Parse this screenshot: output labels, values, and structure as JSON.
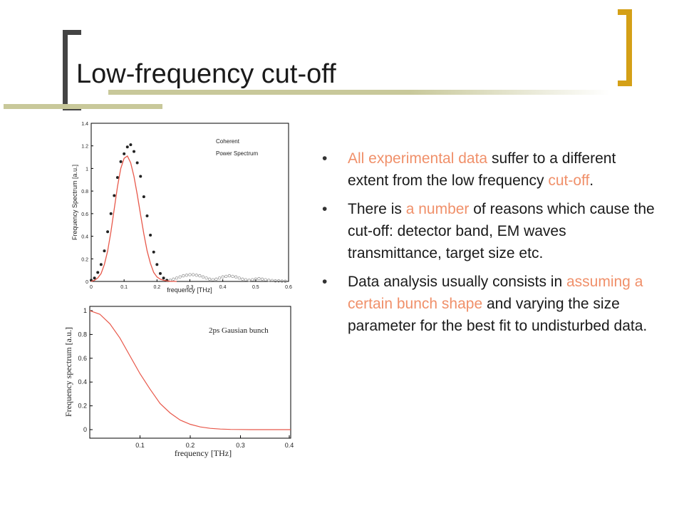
{
  "slide": {
    "title": "Low-frequency cut-off",
    "colors": {
      "accent_bar": "#c8c89a",
      "bracket_dark": "#444444",
      "bracket_gold": "#d4a017",
      "highlight": "#f0906a",
      "curve": "#e8584a"
    }
  },
  "bullets": [
    {
      "parts": [
        {
          "text": "All experimental data",
          "hl": true
        },
        {
          "text": " suffer to a different extent from the low frequency ",
          "hl": false
        },
        {
          "text": "cut-off",
          "hl": true
        },
        {
          "text": ".",
          "hl": false
        }
      ]
    },
    {
      "parts": [
        {
          "text": "There is ",
          "hl": false
        },
        {
          "text": "a number",
          "hl": true
        },
        {
          "text": " of reasons which cause the cut-off: detector band, EM waves transmittance, target size etc.",
          "hl": false
        }
      ]
    },
    {
      "parts": [
        {
          "text": "Data analysis usually consists in ",
          "hl": false
        },
        {
          "text": "assuming a certain bunch shape",
          "hl": true
        },
        {
          "text": " and varying the size parameter for the best fit to undisturbed data.",
          "hl": false
        }
      ]
    }
  ],
  "chart_data": [
    {
      "type": "scatter",
      "xlabel": "frequency [THz]",
      "ylabel": "Frequency Spectrum [a.u.]",
      "xlim": [
        0,
        0.6
      ],
      "ylim": [
        0,
        1.4
      ],
      "xticks": [
        "0",
        "0.1",
        "0.2",
        "0.3",
        "0.4",
        "0.5",
        "0.6"
      ],
      "yticks": [
        "0",
        "0.2",
        "0.4",
        "0.6",
        "0.8",
        "1",
        "1.2",
        "1.4"
      ],
      "legend": [
        "Coherent",
        "Power Spectrum"
      ],
      "series": [
        {
          "kind": "points",
          "x": [
            0.0,
            0.01,
            0.02,
            0.03,
            0.04,
            0.05,
            0.06,
            0.07,
            0.08,
            0.09,
            0.1,
            0.11,
            0.12,
            0.13,
            0.14,
            0.15,
            0.16,
            0.17,
            0.18,
            0.19,
            0.2,
            0.21,
            0.22,
            0.23
          ],
          "y": [
            0.01,
            0.03,
            0.08,
            0.15,
            0.27,
            0.44,
            0.6,
            0.76,
            0.92,
            1.06,
            1.13,
            1.19,
            1.21,
            1.15,
            1.05,
            0.93,
            0.75,
            0.58,
            0.41,
            0.26,
            0.15,
            0.07,
            0.03,
            0.01
          ]
        },
        {
          "kind": "hollow",
          "x": [
            0.24,
            0.25,
            0.26,
            0.27,
            0.28,
            0.29,
            0.3,
            0.31,
            0.32,
            0.33,
            0.34,
            0.35,
            0.36,
            0.37,
            0.38,
            0.39,
            0.4,
            0.41,
            0.42,
            0.43,
            0.44,
            0.45,
            0.46,
            0.47,
            0.48,
            0.49,
            0.5,
            0.51,
            0.52,
            0.53,
            0.54,
            0.55,
            0.56,
            0.57,
            0.58,
            0.59
          ],
          "y": [
            0.01,
            0.02,
            0.03,
            0.04,
            0.05,
            0.055,
            0.06,
            0.06,
            0.055,
            0.05,
            0.04,
            0.03,
            0.02,
            0.015,
            0.02,
            0.03,
            0.04,
            0.045,
            0.05,
            0.045,
            0.04,
            0.03,
            0.02,
            0.015,
            0.01,
            0.015,
            0.02,
            0.025,
            0.02,
            0.015,
            0.01,
            0.008,
            0.005,
            0.005,
            0.003,
            0.002
          ]
        },
        {
          "kind": "line",
          "x": [
            0,
            0.01,
            0.02,
            0.03,
            0.04,
            0.05,
            0.06,
            0.07,
            0.08,
            0.09,
            0.1,
            0.11,
            0.12,
            0.13,
            0.14,
            0.15,
            0.16,
            0.17,
            0.18,
            0.19,
            0.2,
            0.21,
            0.22,
            0.23,
            0.24,
            0.25,
            0.26
          ],
          "y": [
            0,
            0.01,
            0.03,
            0.07,
            0.15,
            0.27,
            0.44,
            0.64,
            0.84,
            1.0,
            1.09,
            1.11,
            1.05,
            0.93,
            0.77,
            0.59,
            0.42,
            0.27,
            0.16,
            0.08,
            0.04,
            0.02,
            0.01,
            0.005,
            0.002,
            0.001,
            0
          ]
        }
      ]
    },
    {
      "type": "line",
      "xlabel": "frequency [THz]",
      "ylabel": "Frequency spectrum [a.u.]",
      "xlim": [
        0,
        0.4
      ],
      "ylim": [
        0,
        1
      ],
      "xticks": [
        {
          "v": 0.1,
          "label": "0.1"
        },
        {
          "v": 0.2,
          "label": "0.2"
        },
        {
          "v": 0.3,
          "label": "0.3"
        },
        {
          "v": 0.4,
          "label": "0.4"
        }
      ],
      "yticks": [
        {
          "v": 0,
          "label": "0"
        },
        {
          "v": 0.2,
          "label": "0.2"
        },
        {
          "v": 0.4,
          "label": "0.4"
        },
        {
          "v": 0.6,
          "label": "0.6"
        },
        {
          "v": 0.8,
          "label": "0.8"
        },
        {
          "v": 1,
          "label": "1"
        }
      ],
      "annotation": "2ps Gausian bunch",
      "series": [
        {
          "x": [
            0,
            0.02,
            0.04,
            0.06,
            0.08,
            0.1,
            0.12,
            0.14,
            0.16,
            0.18,
            0.2,
            0.22,
            0.24,
            0.26,
            0.28,
            0.3,
            0.32,
            0.34,
            0.36,
            0.38,
            0.4
          ],
          "y": [
            1.0,
            0.97,
            0.89,
            0.77,
            0.62,
            0.47,
            0.34,
            0.22,
            0.14,
            0.08,
            0.045,
            0.023,
            0.011,
            0.005,
            0.002,
            0.001,
            0,
            0,
            0,
            0,
            0
          ]
        }
      ]
    }
  ]
}
